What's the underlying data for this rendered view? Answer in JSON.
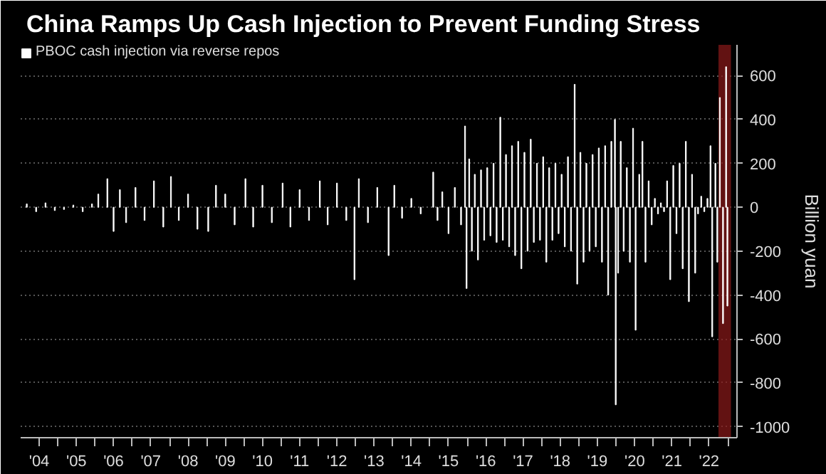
{
  "chart_data": {
    "type": "bar",
    "title": "China Ramps Up Cash Injection to Prevent Funding Stress",
    "ylabel": "Billion yuan",
    "x": [
      "2004-03-01",
      "2004-06-01",
      "2004-09-01",
      "2004-12-01",
      "2005-03-01",
      "2005-06-01",
      "2005-09-01",
      "2005-12-01",
      "2006-02-01",
      "2006-05-01",
      "2006-07-01",
      "2006-09-01",
      "2006-11-01",
      "2007-02-01",
      "2007-05-01",
      "2007-08-01",
      "2007-11-01",
      "2008-01-15",
      "2008-04-01",
      "2008-07-01",
      "2008-10-01",
      "2009-01-15",
      "2009-04-01",
      "2009-07-01",
      "2009-10-01",
      "2010-01-15",
      "2010-04-01",
      "2010-07-01",
      "2010-10-01",
      "2011-01-15",
      "2011-04-01",
      "2011-07-01",
      "2011-10-01",
      "2012-01-15",
      "2012-04-01",
      "2012-07-01",
      "2012-10-01",
      "2012-12-20",
      "2013-02-01",
      "2013-05-01",
      "2013-08-01",
      "2013-11-20",
      "2014-01-15",
      "2014-04-01",
      "2014-07-01",
      "2014-10-01",
      "2015-02-01",
      "2015-03-15",
      "2015-05-01",
      "2015-07-01",
      "2015-09-01",
      "2015-11-01",
      "2015-12-10",
      "2015-12-25",
      "2016-01-20",
      "2016-02-15",
      "2016-03-15",
      "2016-04-15",
      "2016-05-15",
      "2016-06-15",
      "2016-07-15",
      "2016-08-15",
      "2016-09-15",
      "2016-10-15",
      "2016-11-20",
      "2016-12-15",
      "2017-01-15",
      "2017-02-15",
      "2017-03-15",
      "2017-04-15",
      "2017-05-15",
      "2017-06-15",
      "2017-07-15",
      "2017-08-15",
      "2017-09-15",
      "2017-10-15",
      "2017-11-15",
      "2017-12-15",
      "2018-01-15",
      "2018-02-15",
      "2018-03-15",
      "2018-04-15",
      "2018-05-15",
      "2018-06-15",
      "2018-07-15",
      "2018-08-15",
      "2018-09-15",
      "2018-10-15",
      "2018-11-20",
      "2018-12-15",
      "2019-01-15",
      "2019-02-15",
      "2019-03-15",
      "2019-04-15",
      "2019-05-15",
      "2019-06-15",
      "2019-07-15",
      "2019-08-15",
      "2019-09-15",
      "2019-10-15",
      "2019-11-15",
      "2019-12-20",
      "2019-12-28",
      "2020-01-20",
      "2020-02-15",
      "2020-03-15",
      "2020-04-15",
      "2020-05-15",
      "2020-06-15",
      "2020-07-10",
      "2020-08-15",
      "2020-09-15",
      "2020-10-15",
      "2020-11-15",
      "2020-12-15",
      "2021-01-15",
      "2021-02-15",
      "2021-03-15",
      "2021-04-15",
      "2021-05-15",
      "2021-06-15",
      "2021-07-15",
      "2021-08-15",
      "2021-09-15",
      "2021-10-15",
      "2021-11-15",
      "2021-12-15",
      "2022-01-15",
      "2022-02-15",
      "2022-03-15",
      "2022-04-15",
      "2022-05-15",
      "2022-06-15",
      "2022-07-15",
      "2022-08-01",
      "2022-09-01",
      "2022-09-20",
      "2022-10-15",
      "2022-11-15",
      "2022-12-15",
      "2022-12-28"
    ],
    "series": [
      {
        "name": "PBOC cash injection via reverse repos",
        "color": "#ffffff",
        "values": [
          15,
          -20,
          20,
          -15,
          -10,
          10,
          -20,
          15,
          60,
          130,
          -110,
          80,
          -70,
          90,
          -60,
          120,
          -90,
          140,
          -60,
          60,
          -100,
          -110,
          100,
          60,
          -80,
          130,
          -90,
          100,
          -70,
          110,
          -90,
          80,
          -60,
          120,
          -80,
          110,
          -60,
          -330,
          130,
          -70,
          90,
          -220,
          100,
          -50,
          40,
          -30,
          160,
          -60,
          70,
          -120,
          90,
          -80,
          370,
          -370,
          220,
          -200,
          150,
          -240,
          170,
          -150,
          180,
          -130,
          200,
          -160,
          410,
          -150,
          240,
          -180,
          280,
          -220,
          300,
          -280,
          250,
          -200,
          310,
          -160,
          200,
          -150,
          230,
          -250,
          180,
          -150,
          200,
          -120,
          150,
          -180,
          230,
          -200,
          560,
          -350,
          250,
          -250,
          200,
          -200,
          240,
          -180,
          270,
          -250,
          280,
          -400,
          300,
          400,
          -900,
          -300,
          300,
          -200,
          180,
          -250,
          360,
          -560,
          150,
          300,
          -250,
          120,
          -80,
          40,
          -30,
          20,
          -20,
          120,
          -330,
          190,
          -120,
          200,
          -280,
          300,
          -430,
          150,
          -300,
          -30,
          50,
          -20,
          40,
          280,
          -590,
          200,
          -250,
          500,
          -530,
          640,
          -450
        ]
      }
    ],
    "xlim": [
      "2004-01-01",
      "2023-04-01"
    ],
    "xticks": [
      {
        "value": "2004-07-01",
        "label": "'04"
      },
      {
        "value": "2005-01-01",
        "label": null
      },
      {
        "value": "2005-07-01",
        "label": "'05"
      },
      {
        "value": "2006-01-01",
        "label": null
      },
      {
        "value": "2006-07-01",
        "label": "'06"
      },
      {
        "value": "2007-01-01",
        "label": null
      },
      {
        "value": "2007-07-01",
        "label": "'07"
      },
      {
        "value": "2008-01-01",
        "label": null
      },
      {
        "value": "2008-07-01",
        "label": "'08"
      },
      {
        "value": "2009-01-01",
        "label": null
      },
      {
        "value": "2009-07-01",
        "label": "'09"
      },
      {
        "value": "2010-01-01",
        "label": null
      },
      {
        "value": "2010-07-01",
        "label": "'10"
      },
      {
        "value": "2011-01-01",
        "label": null
      },
      {
        "value": "2011-07-01",
        "label": "'11"
      },
      {
        "value": "2012-01-01",
        "label": null
      },
      {
        "value": "2012-07-01",
        "label": "'12"
      },
      {
        "value": "2013-01-01",
        "label": null
      },
      {
        "value": "2013-07-01",
        "label": "'13"
      },
      {
        "value": "2014-01-01",
        "label": null
      },
      {
        "value": "2014-07-01",
        "label": "'14"
      },
      {
        "value": "2015-01-01",
        "label": null
      },
      {
        "value": "2015-07-01",
        "label": "'15"
      },
      {
        "value": "2016-01-01",
        "label": null
      },
      {
        "value": "2016-07-01",
        "label": "'16"
      },
      {
        "value": "2017-01-01",
        "label": null
      },
      {
        "value": "2017-07-01",
        "label": "'17"
      },
      {
        "value": "2018-01-01",
        "label": null
      },
      {
        "value": "2018-07-01",
        "label": "'18"
      },
      {
        "value": "2019-01-01",
        "label": null
      },
      {
        "value": "2019-07-01",
        "label": "'19"
      },
      {
        "value": "2020-01-01",
        "label": null
      },
      {
        "value": "2020-07-01",
        "label": "'20"
      },
      {
        "value": "2021-01-01",
        "label": null
      },
      {
        "value": "2021-07-01",
        "label": "'21"
      },
      {
        "value": "2022-01-01",
        "label": null
      },
      {
        "value": "2022-07-01",
        "label": "'22"
      },
      {
        "value": "2023-01-01",
        "label": null
      }
    ],
    "ylim": [
      -1050,
      740
    ],
    "yticks": [
      -1000,
      -800,
      -600,
      -400,
      -200,
      0,
      200,
      400,
      600
    ],
    "bands": [
      {
        "axis": "x",
        "from": "2022-10-01",
        "to": "2023-02-01",
        "label": null,
        "color": "#8b1a1a"
      }
    ],
    "grid": "y",
    "legend": "top left"
  }
}
